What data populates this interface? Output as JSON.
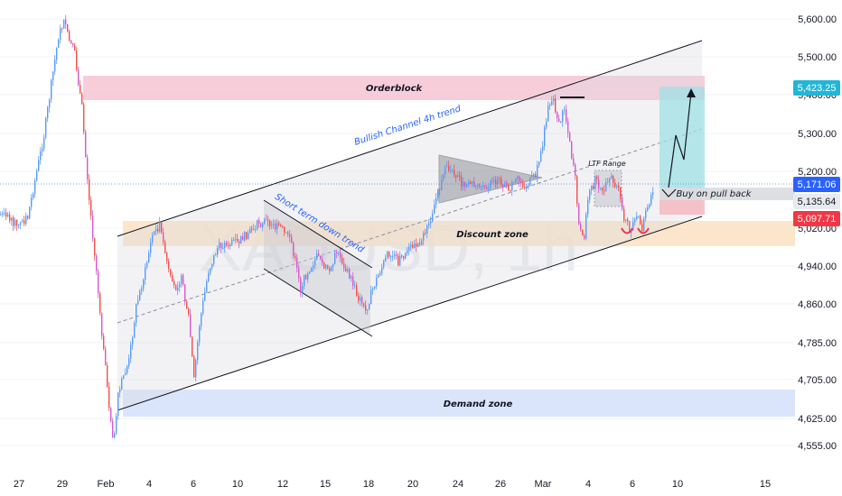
{
  "chart_data": {
    "type": "candlestick",
    "watermark": "XAUUSD, 1h",
    "y_ticks": [
      "5,600.00",
      "5,500.00",
      "5,400.00",
      "5,300.00",
      "5,200.00",
      "5,020.00",
      "4,940.00",
      "4,860.00",
      "4,785.00",
      "4,705.00",
      "4,625.00",
      "4,555.00"
    ],
    "x_ticks": [
      "27",
      "29",
      "Feb",
      "4",
      "6",
      "10",
      "12",
      "15",
      "18",
      "20",
      "24",
      "26",
      "Mar",
      "4",
      "6",
      "10",
      "15"
    ],
    "price_labels": [
      {
        "text": "5,423.25",
        "bg": "#22b6d6"
      },
      {
        "text": "5,171.06",
        "bg": "#2962ff"
      },
      {
        "text": "5,135.64",
        "bg": "#e9eaee"
      },
      {
        "text": "5,097.71",
        "bg": "#f23645"
      }
    ],
    "zones": [
      {
        "label": "Orderblock",
        "color": "#f7c4d4"
      },
      {
        "label": "Discount zone",
        "color": "#fbe2c2"
      },
      {
        "label": "Demand zone",
        "color": "#d6e2fb"
      }
    ],
    "annotations": {
      "channel": "Bullish Channel 4h trend",
      "downtrend": "Short term down trend",
      "ltf_range": "LTF Range",
      "buy": "Buy on  pull back"
    },
    "colors": {
      "up": "#5b9cf6",
      "down": "#ef5350",
      "candle_other": "#d65ac9"
    }
  }
}
